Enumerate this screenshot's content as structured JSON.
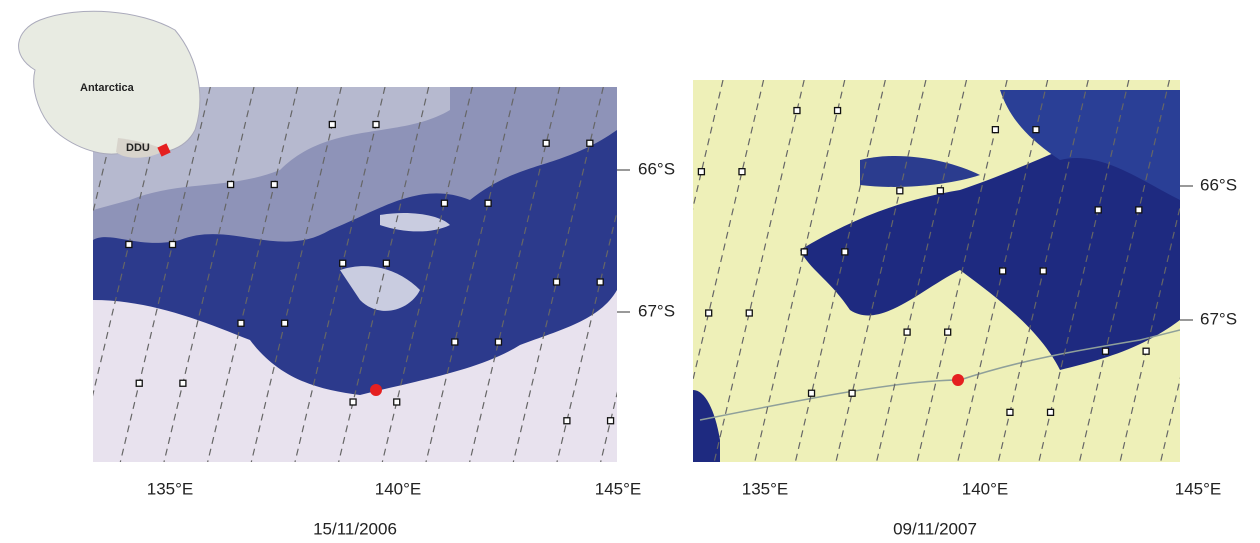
{
  "panels": [
    {
      "date": "15/11/2006",
      "lat_labels": [
        "66°S",
        "67°S"
      ],
      "lon_labels": [
        "135°E",
        "140°E",
        "145°E"
      ]
    },
    {
      "date": "09/11/2007",
      "lat_labels": [
        "66°S",
        "67°S"
      ],
      "lon_labels": [
        "135°E",
        "140°E",
        "145°E"
      ]
    }
  ],
  "inset": {
    "label": "Antarctica",
    "station": "DDU"
  }
}
